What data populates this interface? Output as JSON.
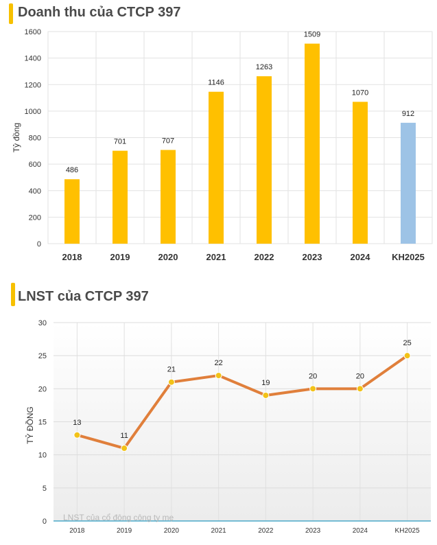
{
  "colors": {
    "title_accent": "#f7c000",
    "revenue_bar": "#ffc000",
    "plan_bar": "#9dc3e6",
    "profit_line": "#e07f3b",
    "profit_marker": "#f2c218",
    "baseline": "#4aa8c8"
  },
  "revenue": {
    "title": "Doanh thu của CTCP 397"
  },
  "profit": {
    "title": "LNST của CTCP 397",
    "watermark": "LNST của cổ đông công ty mẹ"
  },
  "chart_data": [
    {
      "type": "bar",
      "title": "Doanh thu của CTCP 397",
      "xlabel": "",
      "ylabel": "Tỷ đồng",
      "categories": [
        "2018",
        "2019",
        "2020",
        "2021",
        "2022",
        "2023",
        "2024",
        "KH2025"
      ],
      "values": [
        486,
        701,
        707,
        1146,
        1263,
        1509,
        1070,
        912
      ],
      "ylim": [
        0,
        1600
      ],
      "yticks": [
        0,
        200,
        400,
        600,
        800,
        1000,
        1200,
        1400,
        1600
      ],
      "grid": true,
      "data_labels": true,
      "highlight_last": true
    },
    {
      "type": "line",
      "title": "LNST của CTCP 397",
      "xlabel": "",
      "ylabel": "TỶ ĐỒNG",
      "categories": [
        "2018",
        "2019",
        "2020",
        "2021",
        "2022",
        "2023",
        "2024",
        "KH2025"
      ],
      "values": [
        13,
        11,
        21,
        22,
        19,
        20,
        20,
        25
      ],
      "ylim": [
        0,
        30
      ],
      "yticks": [
        0,
        5,
        10,
        15,
        20,
        25,
        30
      ],
      "grid": true,
      "data_labels": true
    }
  ]
}
